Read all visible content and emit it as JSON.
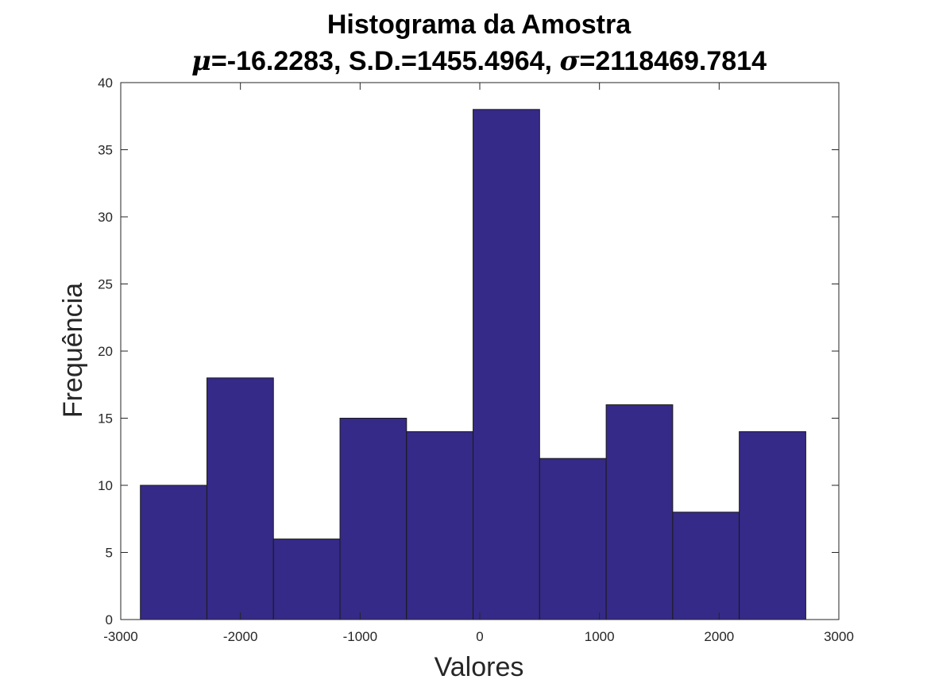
{
  "chart_data": {
    "type": "bar",
    "title": "Histograma da Amostra",
    "subtitle": {
      "mu_symbol": "μ",
      "mu_text": "=-16.2283, S.D.=1455.4964, ",
      "sigma_symbol": "σ",
      "sigma_text": "=2118469.7814"
    },
    "xlabel": "Valores",
    "ylabel": "Frequência",
    "xlim": [
      -3000,
      3000
    ],
    "ylim": [
      0,
      40
    ],
    "xticks": [
      -3000,
      -2000,
      -1000,
      0,
      1000,
      2000,
      3000
    ],
    "yticks": [
      0,
      5,
      10,
      15,
      20,
      25,
      30,
      35,
      40
    ],
    "xtick_labels": [
      "-3000",
      "-2000",
      "-1000",
      "0",
      "1000",
      "2000",
      "3000"
    ],
    "ytick_labels": [
      "0",
      "5",
      "10",
      "15",
      "20",
      "25",
      "30",
      "35",
      "40"
    ],
    "bin_edges": [
      -2836,
      -2280,
      -1724,
      -1168,
      -612,
      -56,
      500,
      1056,
      1612,
      2168,
      2724
    ],
    "values": [
      10,
      18,
      6,
      15,
      14,
      38,
      12,
      16,
      8,
      14
    ],
    "bar_color": "#352a87",
    "edge_color": "#1a1a1a",
    "grid": false
  }
}
